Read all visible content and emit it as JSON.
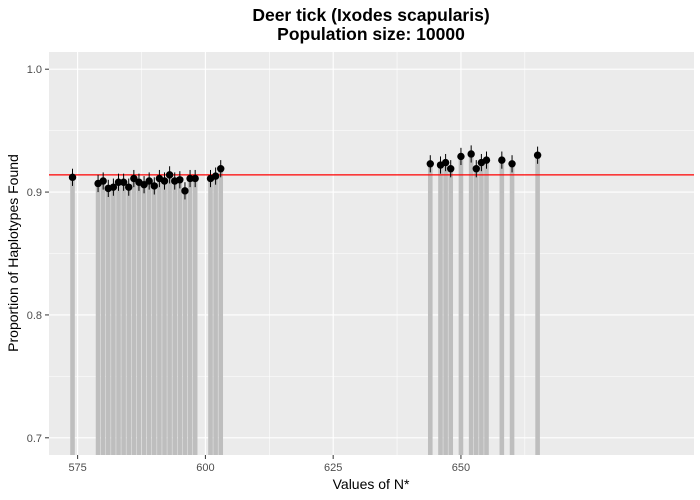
{
  "chart_data": {
    "type": "bar",
    "title": "Deer tick (Ixodes scapularis)",
    "subtitle": "Population size: 10000",
    "xlabel": "Values of N*",
    "ylabel": "Proportion of Haplotypes Found",
    "xlim": [
      569.4,
      695.6
    ],
    "ylim": [
      0.686,
      1.014
    ],
    "x_ticks": [
      575,
      600,
      625,
      650
    ],
    "x_tick_labels": [
      "575",
      "600",
      "625",
      "650"
    ],
    "y_ticks": [
      0.7,
      0.8,
      0.9,
      1.0
    ],
    "y_tick_labels": [
      "0.7",
      "0.8",
      "0.9",
      "1.0"
    ],
    "grid": true,
    "reference_line": {
      "y": 0.914,
      "color": "#ff0000"
    },
    "colors": {
      "panel": "#ebebeb",
      "grid": "#ffffff",
      "bar": "#bebebe",
      "point": "#000000",
      "reference": "#ff0000"
    },
    "points": [
      {
        "x": 574,
        "y": 0.912,
        "err": 0.007
      },
      {
        "x": 579,
        "y": 0.907,
        "err": 0.007
      },
      {
        "x": 580,
        "y": 0.909,
        "err": 0.007
      },
      {
        "x": 581,
        "y": 0.903,
        "err": 0.007
      },
      {
        "x": 582,
        "y": 0.904,
        "err": 0.007
      },
      {
        "x": 583,
        "y": 0.908,
        "err": 0.007
      },
      {
        "x": 584,
        "y": 0.908,
        "err": 0.007
      },
      {
        "x": 585,
        "y": 0.904,
        "err": 0.007
      },
      {
        "x": 586,
        "y": 0.911,
        "err": 0.007
      },
      {
        "x": 587,
        "y": 0.908,
        "err": 0.007
      },
      {
        "x": 588,
        "y": 0.906,
        "err": 0.007
      },
      {
        "x": 589,
        "y": 0.909,
        "err": 0.007
      },
      {
        "x": 590,
        "y": 0.905,
        "err": 0.007
      },
      {
        "x": 591,
        "y": 0.911,
        "err": 0.007
      },
      {
        "x": 592,
        "y": 0.909,
        "err": 0.007
      },
      {
        "x": 593,
        "y": 0.914,
        "err": 0.007
      },
      {
        "x": 594,
        "y": 0.909,
        "err": 0.007
      },
      {
        "x": 595,
        "y": 0.91,
        "err": 0.007
      },
      {
        "x": 596,
        "y": 0.901,
        "err": 0.007
      },
      {
        "x": 597,
        "y": 0.911,
        "err": 0.007
      },
      {
        "x": 598,
        "y": 0.911,
        "err": 0.007
      },
      {
        "x": 601,
        "y": 0.911,
        "err": 0.007
      },
      {
        "x": 602,
        "y": 0.913,
        "err": 0.007
      },
      {
        "x": 603,
        "y": 0.919,
        "err": 0.007
      },
      {
        "x": 644,
        "y": 0.923,
        "err": 0.007
      },
      {
        "x": 646,
        "y": 0.922,
        "err": 0.007
      },
      {
        "x": 647,
        "y": 0.924,
        "err": 0.007
      },
      {
        "x": 648,
        "y": 0.919,
        "err": 0.007
      },
      {
        "x": 650,
        "y": 0.929,
        "err": 0.007
      },
      {
        "x": 652,
        "y": 0.931,
        "err": 0.007
      },
      {
        "x": 653,
        "y": 0.919,
        "err": 0.007
      },
      {
        "x": 654,
        "y": 0.924,
        "err": 0.007
      },
      {
        "x": 655,
        "y": 0.926,
        "err": 0.007
      },
      {
        "x": 658,
        "y": 0.926,
        "err": 0.007
      },
      {
        "x": 660,
        "y": 0.923,
        "err": 0.007
      },
      {
        "x": 665,
        "y": 0.93,
        "err": 0.007
      }
    ]
  }
}
